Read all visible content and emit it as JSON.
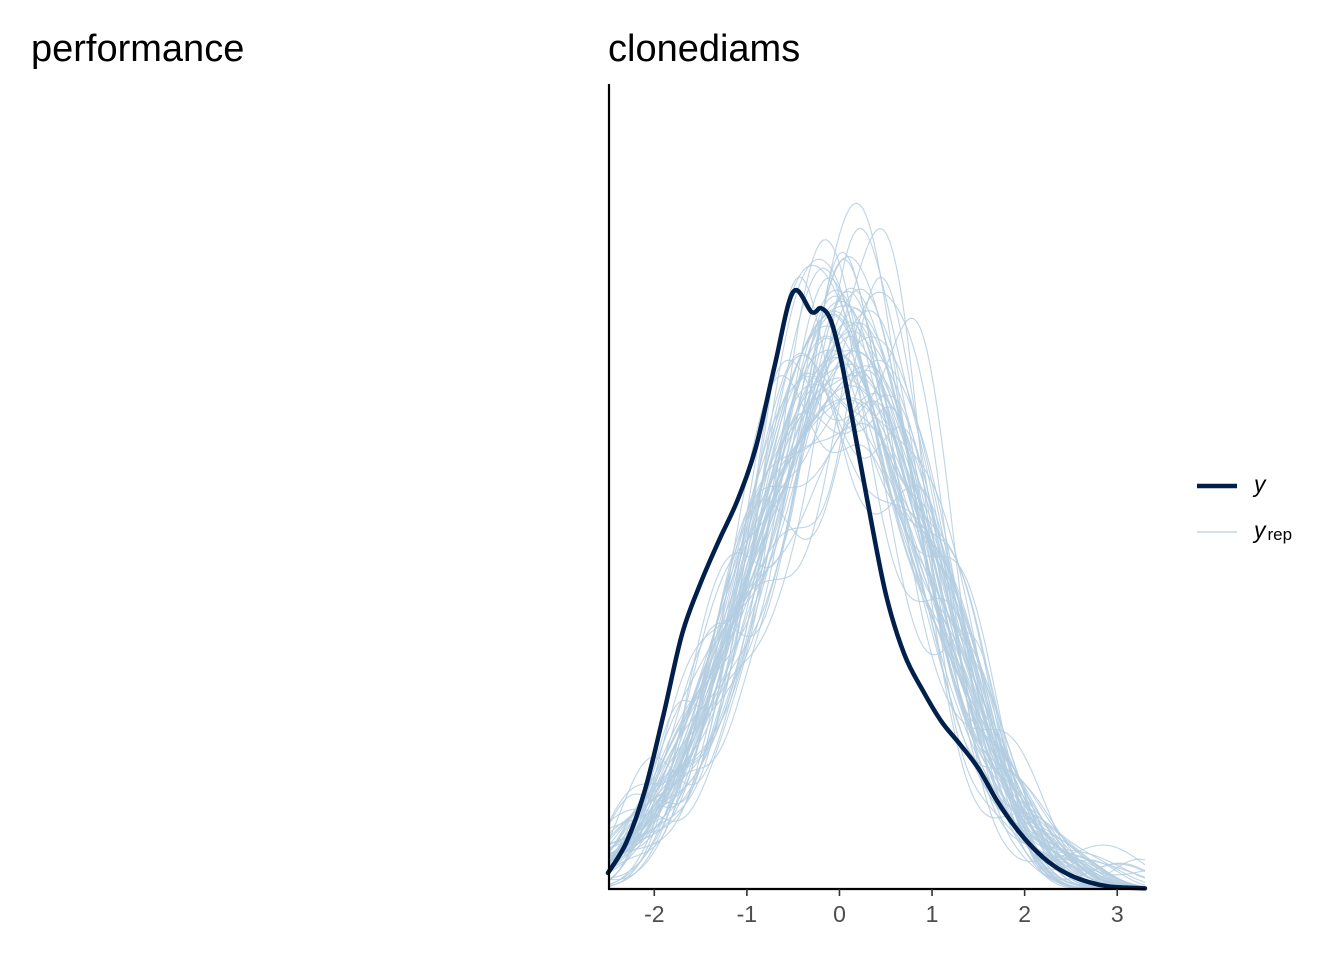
{
  "colors": {
    "y": "#011f4b",
    "yrep": "#b3cde0",
    "axis": "#000000",
    "tick_text": "#4d4d4d"
  },
  "chart_data": [
    {
      "type": "line",
      "title": "performance",
      "series": []
    },
    {
      "type": "line",
      "chart_kind": "posterior predictive density overlay",
      "title": "clonediams",
      "xlabel": "",
      "ylabel": "",
      "xlim": [
        -2.5,
        3.3
      ],
      "ylim": [
        0,
        0.6
      ],
      "x_ticks": [
        "-2",
        "-1",
        "0",
        "1",
        "2",
        "3"
      ],
      "x_tick_values": [
        -2,
        -1,
        0,
        1,
        2,
        3
      ],
      "y_axis_labels_visible": false,
      "grid": false,
      "legend": {
        "position": "right",
        "entries": [
          {
            "key": "y",
            "label": "y",
            "sub": ""
          },
          {
            "key": "yrep",
            "label": "y",
            "sub": "rep"
          }
        ]
      },
      "y_series": {
        "name": "y",
        "x": [
          -2.5,
          -2.3,
          -2.1,
          -1.9,
          -1.7,
          -1.5,
          -1.3,
          -1.1,
          -0.9,
          -0.7,
          -0.5,
          -0.3,
          -0.2,
          -0.1,
          0.0,
          0.1,
          0.3,
          0.5,
          0.7,
          0.9,
          1.1,
          1.3,
          1.5,
          1.7,
          1.9,
          2.1,
          2.3,
          2.5,
          2.7,
          2.9,
          3.1,
          3.3
        ],
        "values": [
          0.012,
          0.035,
          0.074,
          0.13,
          0.19,
          0.228,
          0.26,
          0.29,
          0.33,
          0.39,
          0.445,
          0.43,
          0.433,
          0.425,
          0.4,
          0.365,
          0.29,
          0.22,
          0.175,
          0.148,
          0.125,
          0.108,
          0.09,
          0.066,
          0.046,
          0.03,
          0.018,
          0.01,
          0.005,
          0.002,
          0.001,
          0.0005
        ]
      },
      "yrep_series": {
        "name": "yrep",
        "count": 60
      }
    }
  ]
}
